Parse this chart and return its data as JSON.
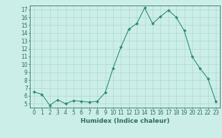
{
  "x": [
    0,
    1,
    2,
    3,
    4,
    5,
    6,
    7,
    8,
    9,
    10,
    11,
    12,
    13,
    14,
    15,
    16,
    17,
    18,
    19,
    20,
    21,
    22,
    23
  ],
  "y": [
    6.5,
    6.2,
    4.8,
    5.5,
    5.0,
    5.4,
    5.3,
    5.2,
    5.3,
    6.4,
    9.5,
    12.2,
    14.5,
    15.2,
    17.2,
    15.2,
    16.1,
    16.9,
    16.0,
    14.3,
    11.0,
    9.5,
    8.2,
    5.3
  ],
  "line_color": "#2e8b6e",
  "marker": "D",
  "marker_size": 2.0,
  "bg_color": "#cceee8",
  "grid_color": "#aad8d0",
  "xlabel": "Humidex (Indice chaleur)",
  "xlim": [
    -0.5,
    23.5
  ],
  "ylim": [
    4.5,
    17.5
  ],
  "yticks": [
    5,
    6,
    7,
    8,
    9,
    10,
    11,
    12,
    13,
    14,
    15,
    16,
    17
  ],
  "xticks": [
    0,
    1,
    2,
    3,
    4,
    5,
    6,
    7,
    8,
    9,
    10,
    11,
    12,
    13,
    14,
    15,
    16,
    17,
    18,
    19,
    20,
    21,
    22,
    23
  ],
  "tick_color": "#2e6b5e",
  "axis_color": "#2e6b5e",
  "label_fontsize": 6.5,
  "tick_fontsize": 5.5
}
